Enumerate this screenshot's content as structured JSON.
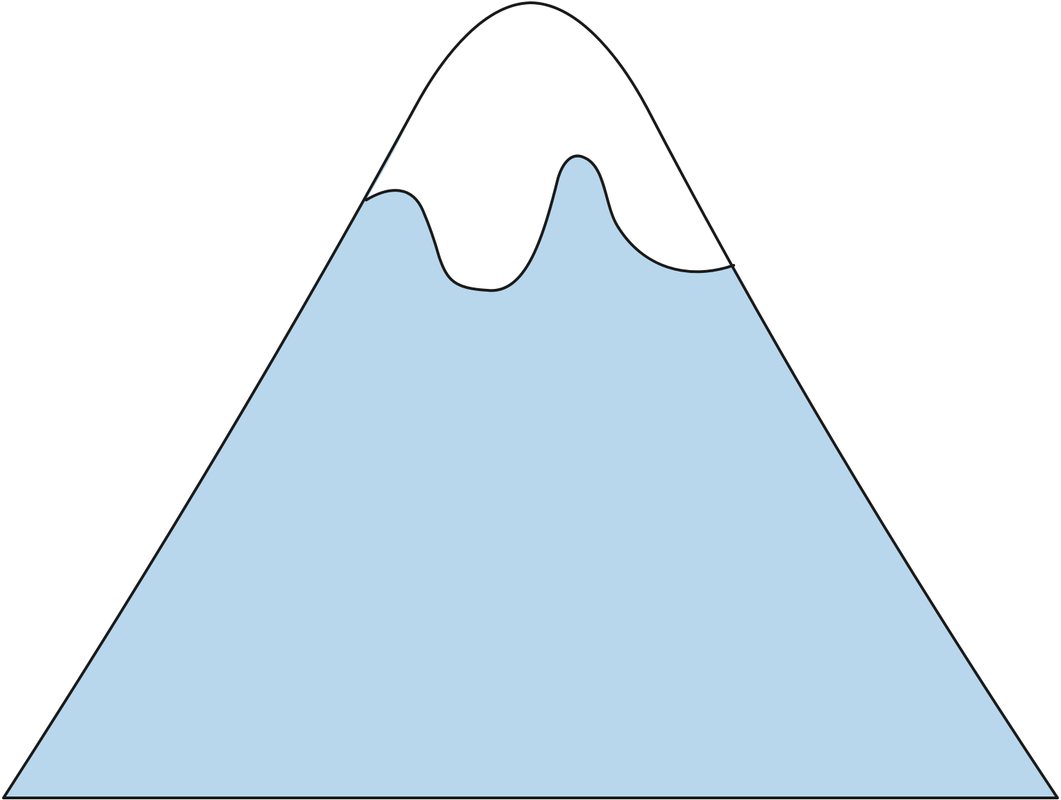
{
  "illustration": {
    "subject": "snow-capped-mountain-icon",
    "colors": {
      "background": "#ffffff",
      "mountain_fill": "#b8d7ec",
      "snow_fill": "#ffffff",
      "outline": "#1a1a1a"
    }
  }
}
